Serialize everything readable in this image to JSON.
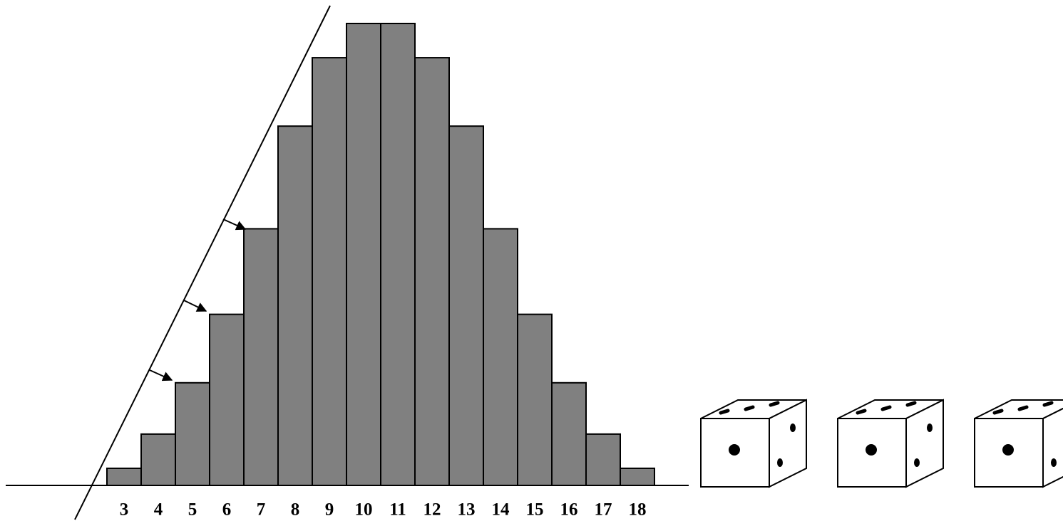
{
  "chart_data": {
    "type": "bar",
    "categories": [
      3,
      4,
      5,
      6,
      7,
      8,
      9,
      10,
      11,
      12,
      13,
      14,
      15,
      16,
      17,
      18
    ],
    "values": [
      1,
      3,
      6,
      10,
      15,
      21,
      25,
      27,
      27,
      25,
      21,
      15,
      10,
      6,
      3,
      1
    ],
    "color": "#808080"
  }
}
